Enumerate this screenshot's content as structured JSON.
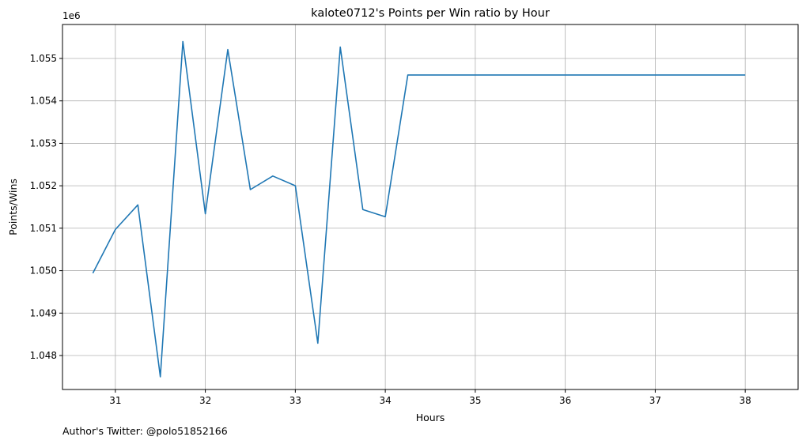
{
  "chart_data": {
    "type": "line",
    "title": "kalote0712's Points per Win ratio by Hour",
    "xlabel": "Hours",
    "ylabel": "Points/Wins",
    "y_offset_label": "1e6",
    "xlim": [
      30.4125,
      38.5875
    ],
    "ylim": [
      1047.2,
      1055.8
    ],
    "x_ticks": [
      31,
      32,
      33,
      34,
      35,
      36,
      37,
      38
    ],
    "y_ticks": [
      1.048,
      1.049,
      1.05,
      1.051,
      1.052,
      1.053,
      1.054,
      1.055
    ],
    "y_tick_labels": [
      "1.048",
      "1.049",
      "1.050",
      "1.051",
      "1.052",
      "1.053",
      "1.054",
      "1.055"
    ],
    "grid": true,
    "line_color": "#1f77b4",
    "series": [
      {
        "x": [
          30.75,
          31.0,
          31.25,
          31.5,
          31.75,
          32.0,
          32.25,
          32.5,
          32.75,
          33.0,
          33.25,
          33.5,
          33.75,
          34.0,
          34.25,
          35.0,
          36.0,
          37.0,
          38.0
        ],
        "values": [
          1.04994,
          1.05097,
          1.05155,
          1.0475,
          1.0554,
          1.05134,
          1.05521,
          1.05191,
          1.05223,
          1.052,
          1.04829,
          1.05527,
          1.05144,
          1.05127,
          1.05461,
          1.05461,
          1.05461,
          1.05461,
          1.05461
        ]
      }
    ]
  },
  "footer": {
    "author": "Author's Twitter: @polo51852166"
  }
}
